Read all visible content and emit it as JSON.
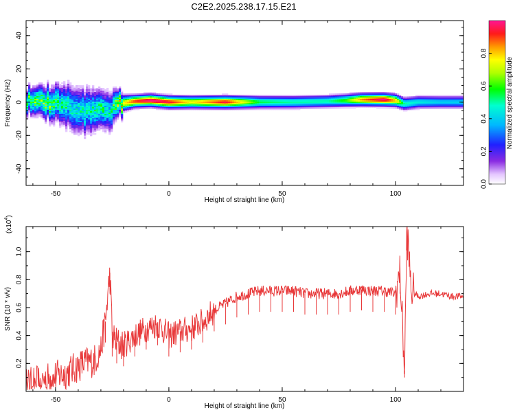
{
  "title": "C2E2.2025.238.17.15.E21",
  "colors": {
    "signal": "#e8393a",
    "axis": "#000000",
    "background": "#ffffff"
  },
  "chart_data": [
    {
      "type": "heatmap",
      "xlabel": "Height of straight line (km)",
      "ylabel": "Frequency (Hz)",
      "xlim": [
        -63,
        130
      ],
      "ylim": [
        -50,
        49
      ],
      "xticks": [
        -50,
        0,
        50,
        100
      ],
      "xtick_labels": [
        "-50",
        "0",
        "50",
        "100"
      ],
      "yticks": [
        -40,
        -20,
        0,
        20,
        40
      ],
      "ytick_labels": [
        "-40",
        "-20",
        "0",
        "20",
        "40"
      ],
      "colorbar": {
        "label": "Normalized spectral amplitude",
        "range": [
          0,
          1
        ],
        "ticks": [
          0.0,
          0.2,
          0.4,
          0.6,
          0.8
        ],
        "tick_labels": [
          "0.0",
          "0.2",
          "0.4",
          "0.6",
          "0.8"
        ],
        "colormap": "rainbow"
      },
      "ridge": [
        {
          "x": -63,
          "y": 1,
          "width": 4,
          "peak": 0.55
        },
        {
          "x": -55,
          "y": 0,
          "width": 5,
          "peak": 0.6
        },
        {
          "x": -48,
          "y": -1,
          "width": 6,
          "peak": 0.5
        },
        {
          "x": -42,
          "y": -3,
          "width": 7,
          "peak": 0.45
        },
        {
          "x": -36,
          "y": -6,
          "width": 7,
          "peak": 0.45
        },
        {
          "x": -30,
          "y": -3,
          "width": 6,
          "peak": 0.5
        },
        {
          "x": -26,
          "y": -6,
          "width": 6,
          "peak": 0.45
        },
        {
          "x": -22,
          "y": -1,
          "width": 4,
          "peak": 0.7
        },
        {
          "x": -15,
          "y": 0.5,
          "width": 3,
          "peak": 0.9
        },
        {
          "x": -8,
          "y": 1,
          "width": 3,
          "peak": 1.0
        },
        {
          "x": 0,
          "y": 0,
          "width": 3,
          "peak": 0.95
        },
        {
          "x": 10,
          "y": 0,
          "width": 3,
          "peak": 0.75
        },
        {
          "x": 25,
          "y": 0,
          "width": 3,
          "peak": 0.95
        },
        {
          "x": 40,
          "y": 0,
          "width": 3,
          "peak": 0.55
        },
        {
          "x": 55,
          "y": 0,
          "width": 3,
          "peak": 0.5
        },
        {
          "x": 70,
          "y": 0.5,
          "width": 3,
          "peak": 0.5
        },
        {
          "x": 78,
          "y": 1,
          "width": 3,
          "peak": 0.6
        },
        {
          "x": 85,
          "y": 1.5,
          "width": 3,
          "peak": 0.85
        },
        {
          "x": 95,
          "y": 1.5,
          "width": 3,
          "peak": 1.0
        },
        {
          "x": 100,
          "y": 1,
          "width": 3,
          "peak": 0.8
        },
        {
          "x": 104,
          "y": -1,
          "width": 3,
          "peak": 0.5
        },
        {
          "x": 110,
          "y": 0,
          "width": 3,
          "peak": 0.45
        },
        {
          "x": 120,
          "y": 0,
          "width": 3,
          "peak": 0.4
        },
        {
          "x": 130,
          "y": 0,
          "width": 3,
          "peak": 0.4
        }
      ]
    },
    {
      "type": "line",
      "xlabel": "Height of straight line (km)",
      "ylabel": "SNR (10 * v/v)",
      "scale_label": "(x10",
      "scale_exponent": "4",
      "xlim": [
        -63,
        130
      ],
      "ylim": [
        0.0,
        1.18
      ],
      "xticks": [
        -50,
        0,
        50,
        100
      ],
      "xtick_labels": [
        "-50",
        "0",
        "50",
        "100"
      ],
      "yticks": [
        0.2,
        0.4,
        0.6,
        0.8,
        1.0
      ],
      "ytick_labels": [
        "0.2",
        "0.4",
        "0.6",
        "0.8",
        "1.0"
      ],
      "series": [
        {
          "x": [
            -63,
            -58,
            -52,
            -47,
            -42,
            -38,
            -33,
            -30,
            -28,
            -26,
            -25,
            -23,
            -20,
            -15,
            -10,
            -5,
            0,
            5,
            10,
            15,
            20,
            25,
            30,
            35,
            40,
            45,
            50,
            55,
            60,
            65,
            70,
            75,
            80,
            85,
            90,
            95,
            100,
            102,
            104,
            105,
            107,
            110,
            115,
            120,
            125,
            130
          ],
          "y": [
            0.05,
            0.07,
            0.1,
            0.12,
            0.16,
            0.2,
            0.22,
            0.3,
            0.5,
            0.85,
            0.4,
            0.35,
            0.33,
            0.4,
            0.45,
            0.48,
            0.4,
            0.43,
            0.45,
            0.5,
            0.58,
            0.63,
            0.68,
            0.7,
            0.72,
            0.72,
            0.72,
            0.72,
            0.7,
            0.7,
            0.7,
            0.7,
            0.72,
            0.73,
            0.72,
            0.72,
            0.7,
            0.85,
            0.15,
            1.16,
            0.72,
            0.68,
            0.7,
            0.7,
            0.68,
            0.68
          ]
        }
      ]
    }
  ]
}
